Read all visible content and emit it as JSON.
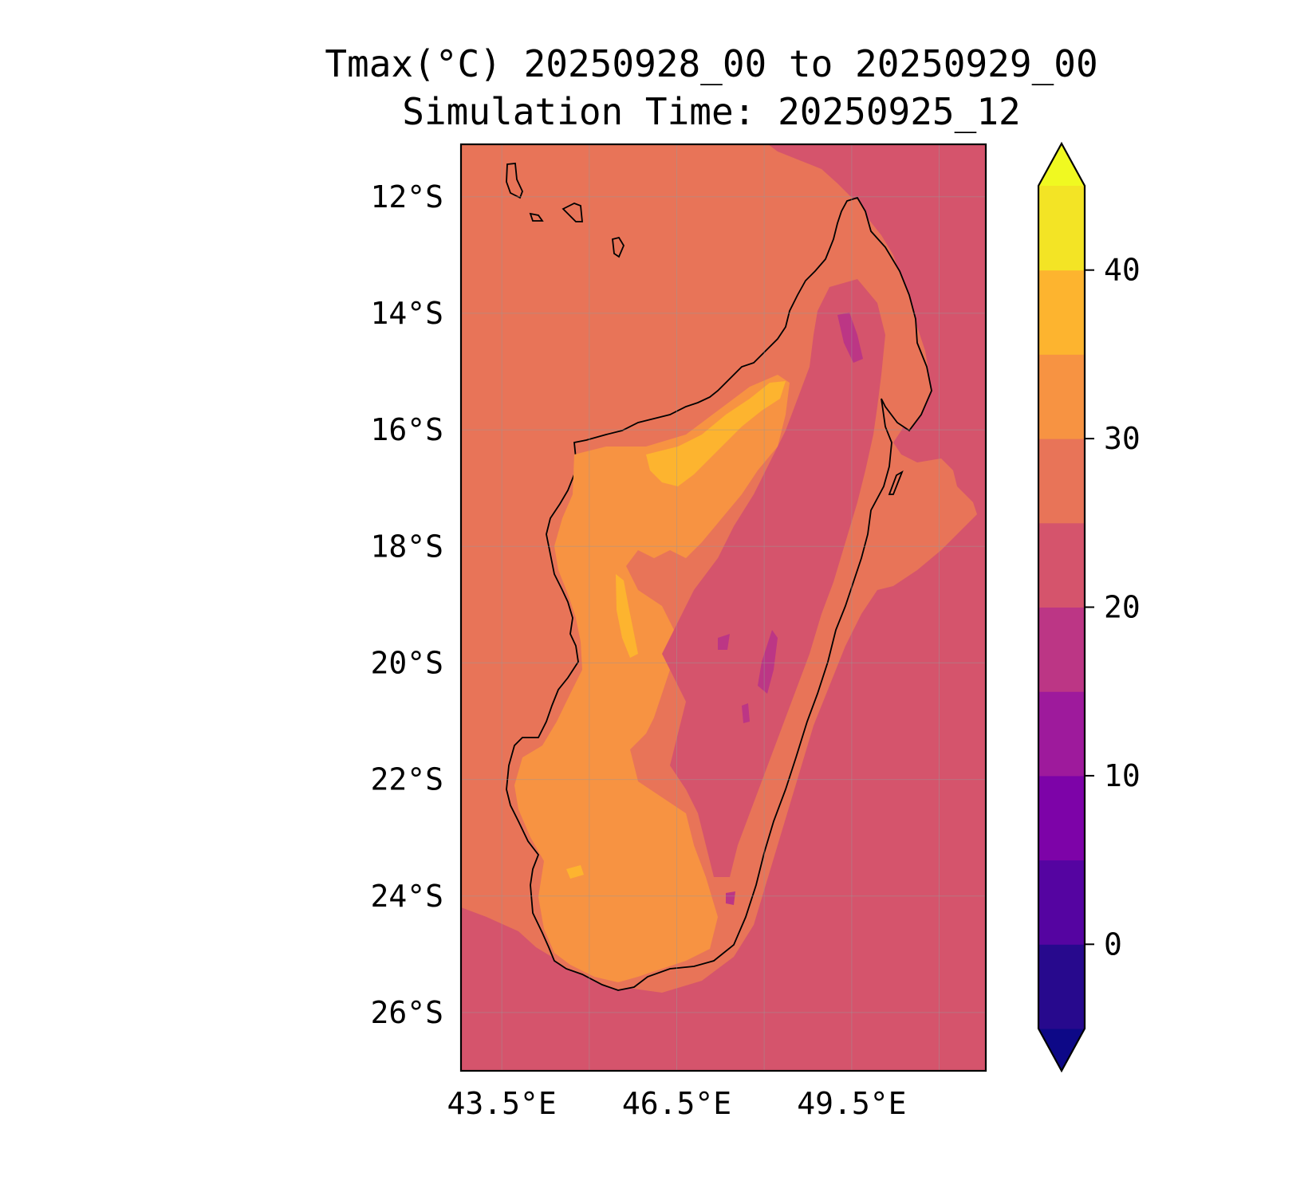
{
  "title": {
    "line1": "Tmax(°C) 20250928_00 to 20250929_00",
    "line2": "Simulation Time: 20250925_12"
  },
  "map": {
    "lon_range": [
      42.8,
      51.8
    ],
    "lat_range": [
      -27.0,
      -11.1
    ],
    "lat_ticks": [
      {
        "value": -12,
        "label": "12°S"
      },
      {
        "value": -14,
        "label": "14°S"
      },
      {
        "value": -16,
        "label": "16°S"
      },
      {
        "value": -18,
        "label": "18°S"
      },
      {
        "value": -20,
        "label": "20°S"
      },
      {
        "value": -22,
        "label": "22°S"
      },
      {
        "value": -24,
        "label": "24°S"
      },
      {
        "value": -26,
        "label": "26°S"
      }
    ],
    "lon_ticks": [
      {
        "value": 43.5,
        "label": "43.5°E"
      },
      {
        "value": 46.5,
        "label": "46.5°E"
      },
      {
        "value": 49.5,
        "label": "49.5°E"
      }
    ],
    "grid": true,
    "background_fields": {
      "west_ocean_color": "#e87458",
      "east_ocean_color": "#d5546c"
    }
  },
  "colorbar": {
    "levels": [
      -5,
      0,
      5,
      10,
      15,
      20,
      25,
      30,
      35,
      40,
      45
    ],
    "colors": [
      "#27098d",
      "#5504a1",
      "#7d03a8",
      "#9e1a9c",
      "#bc3685",
      "#d5546c",
      "#e87458",
      "#f79342",
      "#fdb42f",
      "#f3e425"
    ],
    "under_color": "#0d0887",
    "over_color": "#f0f921",
    "ticks": [
      {
        "value": 0,
        "label": "0"
      },
      {
        "value": 10,
        "label": "10"
      },
      {
        "value": 20,
        "label": "20"
      },
      {
        "value": 30,
        "label": "30"
      },
      {
        "value": 40,
        "label": "40"
      }
    ],
    "extend": "both",
    "units": "°C",
    "colormap": "plasma"
  }
}
